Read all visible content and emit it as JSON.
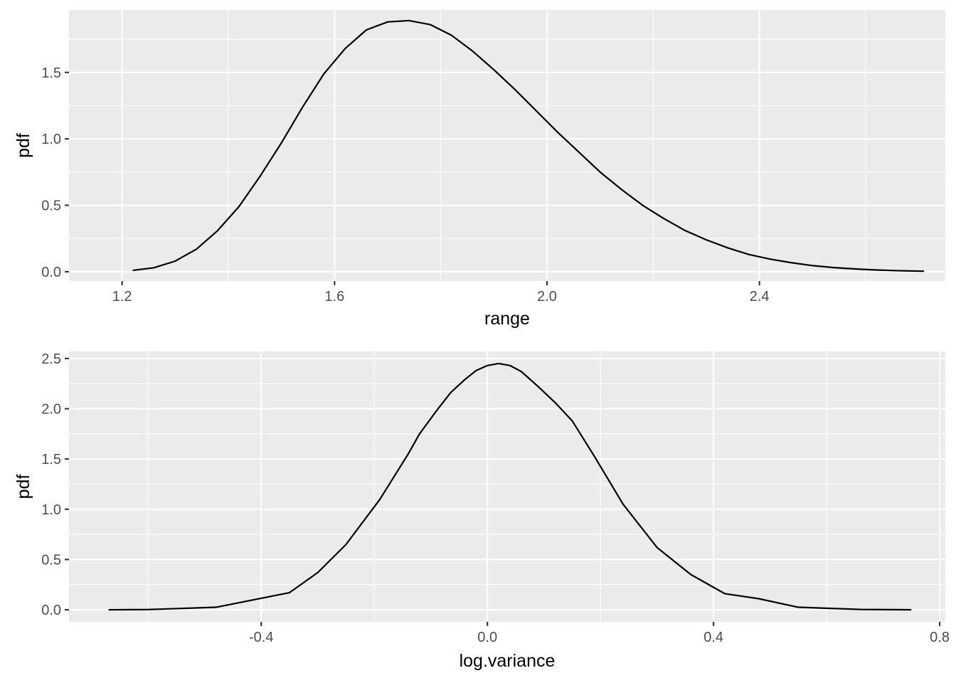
{
  "chart_data": [
    {
      "type": "line",
      "xlabel": "range",
      "ylabel": "pdf",
      "xlim": [
        1.1,
        2.75
      ],
      "ylim": [
        -0.07,
        1.97
      ],
      "x_ticks": [
        1.2,
        1.6,
        2.0,
        2.4
      ],
      "x_tick_labels": [
        "1.2",
        "1.6",
        "2.0",
        "2.4"
      ],
      "y_ticks": [
        0.0,
        0.5,
        1.0,
        1.5
      ],
      "y_tick_labels": [
        "0.0",
        "0.5",
        "1.0",
        "1.5"
      ],
      "grid": true,
      "series": [
        {
          "x": [
            1.22,
            1.26,
            1.3,
            1.34,
            1.38,
            1.42,
            1.46,
            1.5,
            1.54,
            1.58,
            1.62,
            1.66,
            1.7,
            1.74,
            1.78,
            1.82,
            1.86,
            1.9,
            1.94,
            1.98,
            2.02,
            2.06,
            2.1,
            2.14,
            2.18,
            2.22,
            2.26,
            2.3,
            2.34,
            2.38,
            2.42,
            2.46,
            2.5,
            2.54,
            2.58,
            2.62,
            2.66,
            2.71
          ],
          "y": [
            0.01,
            0.03,
            0.08,
            0.17,
            0.31,
            0.49,
            0.72,
            0.97,
            1.24,
            1.49,
            1.68,
            1.82,
            1.88,
            1.89,
            1.86,
            1.78,
            1.66,
            1.52,
            1.37,
            1.21,
            1.05,
            0.9,
            0.75,
            0.62,
            0.5,
            0.4,
            0.31,
            0.24,
            0.18,
            0.13,
            0.095,
            0.068,
            0.046,
            0.031,
            0.021,
            0.013,
            0.008,
            0.004
          ]
        }
      ]
    },
    {
      "type": "line",
      "xlabel": "log.variance",
      "ylabel": "pdf",
      "xlim": [
        -0.74,
        0.81
      ],
      "ylim": [
        -0.12,
        2.57
      ],
      "x_ticks": [
        -0.4,
        0.0,
        0.4,
        0.8
      ],
      "x_tick_labels": [
        "-0.4",
        "0.0",
        "0.4",
        "0.8"
      ],
      "y_ticks": [
        0.0,
        0.5,
        1.0,
        1.5,
        2.0,
        2.5
      ],
      "y_tick_labels": [
        "0.0",
        "0.5",
        "1.0",
        "1.5",
        "2.0",
        "2.5"
      ],
      "grid": true,
      "series": [
        {
          "x": [
            -0.67,
            -0.6,
            -0.48,
            -0.35,
            -0.3,
            -0.25,
            -0.19,
            -0.14,
            -0.12,
            -0.09,
            -0.065,
            -0.04,
            -0.02,
            0.0,
            0.02,
            0.04,
            0.06,
            0.09,
            0.12,
            0.15,
            0.19,
            0.24,
            0.3,
            0.36,
            0.42,
            0.48,
            0.55,
            0.66,
            0.75
          ],
          "y": [
            0.0,
            0.002,
            0.025,
            0.17,
            0.37,
            0.65,
            1.1,
            1.55,
            1.75,
            1.98,
            2.16,
            2.29,
            2.38,
            2.43,
            2.45,
            2.43,
            2.37,
            2.22,
            2.06,
            1.88,
            1.52,
            1.05,
            0.62,
            0.35,
            0.16,
            0.11,
            0.025,
            0.003,
            0.0
          ]
        }
      ]
    }
  ]
}
